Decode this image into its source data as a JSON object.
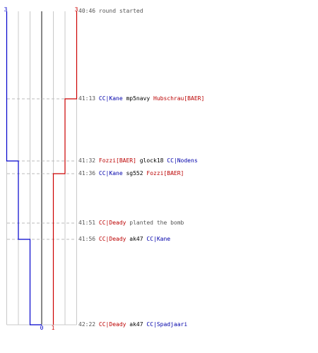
{
  "colors": {
    "blue": "#0000cc",
    "red": "#cc0000",
    "grid": "#c8c8c8",
    "center": "#555555",
    "dash": "#bbbbbb"
  },
  "scores": {
    "blue_start": "3",
    "red_start": "3",
    "blue_end": "0",
    "red_end": "1"
  },
  "events": [
    {
      "time": "40:46",
      "parts": [
        {
          "text": "round started",
          "cls": "grey"
        }
      ]
    },
    {
      "time": "41:13",
      "parts": [
        {
          "text": "CC|Kane",
          "cls": "blue"
        },
        {
          "text": "mp5navy",
          "cls": ""
        },
        {
          "text": "Hubschrau[BAER]",
          "cls": "red"
        }
      ]
    },
    {
      "time": "41:32",
      "parts": [
        {
          "text": "Fozzi[BAER]",
          "cls": "red"
        },
        {
          "text": "glock18",
          "cls": ""
        },
        {
          "text": "CC|Nodens",
          "cls": "blue"
        }
      ]
    },
    {
      "time": "41:36",
      "parts": [
        {
          "text": "CC|Kane",
          "cls": "blue"
        },
        {
          "text": "sg552",
          "cls": ""
        },
        {
          "text": "Fozzi[BAER]",
          "cls": "red"
        }
      ]
    },
    {
      "time": "41:51",
      "parts": [
        {
          "text": "CC|Deady",
          "cls": "red"
        },
        {
          "text": "planted the bomb",
          "cls": "grey"
        }
      ]
    },
    {
      "time": "41:56",
      "parts": [
        {
          "text": "CC|Deady",
          "cls": "red"
        },
        {
          "text": "ak47",
          "cls": ""
        },
        {
          "text": "CC|Kane",
          "cls": "blue"
        }
      ]
    },
    {
      "time": "42:22",
      "parts": [
        {
          "text": "CC|Deady",
          "cls": "red"
        },
        {
          "text": "ak47",
          "cls": ""
        },
        {
          "text": "CC|Spadjaari",
          "cls": "blue"
        }
      ]
    }
  ],
  "step_data": {
    "blue_alive": [
      3,
      3,
      2,
      2,
      2,
      1,
      0
    ],
    "red_alive": [
      3,
      2,
      2,
      1,
      1,
      1,
      1
    ]
  }
}
